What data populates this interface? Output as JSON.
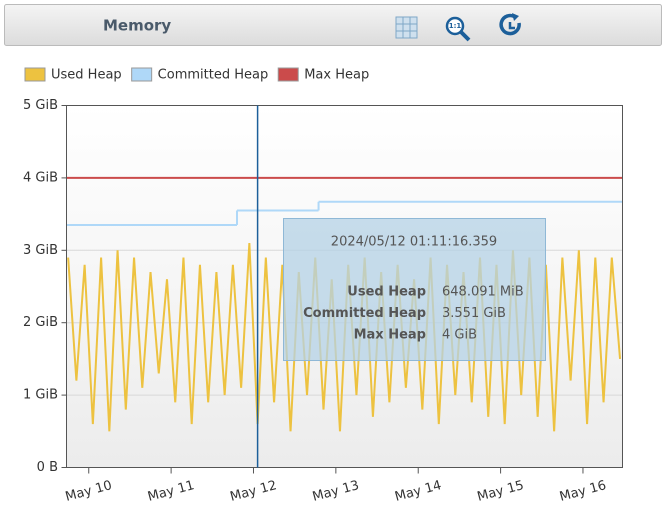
{
  "chart_data": {
    "type": "line",
    "title": "Memory",
    "xlim": [
      9.73,
      16.48
    ],
    "ylim": [
      0,
      5
    ],
    "yticks": [
      {
        "value": 0,
        "label": "0 B"
      },
      {
        "value": 1,
        "label": "1 GiB"
      },
      {
        "value": 2,
        "label": "2 GiB"
      },
      {
        "value": 3,
        "label": "3 GiB"
      },
      {
        "value": 4,
        "label": "4 GiB"
      },
      {
        "value": 5,
        "label": "5 GiB"
      }
    ],
    "xticks": [
      {
        "value": 10,
        "label": "May 10"
      },
      {
        "value": 11,
        "label": "May 11"
      },
      {
        "value": 12,
        "label": "May 12"
      },
      {
        "value": 13,
        "label": "May 13"
      },
      {
        "value": 14,
        "label": "May 14"
      },
      {
        "value": 15,
        "label": "May 15"
      },
      {
        "value": 16,
        "label": "May 16"
      }
    ],
    "grid": true,
    "legend": "top-left",
    "series": [
      {
        "name": "Used Heap",
        "color": "#edc240",
        "x": [
          9.75,
          9.85,
          9.95,
          10.05,
          10.15,
          10.25,
          10.35,
          10.45,
          10.55,
          10.65,
          10.75,
          10.85,
          10.95,
          11.05,
          11.15,
          11.25,
          11.35,
          11.45,
          11.55,
          11.65,
          11.75,
          11.85,
          11.95,
          12.05,
          12.15,
          12.25,
          12.35,
          12.45,
          12.55,
          12.65,
          12.75,
          12.85,
          12.95,
          13.05,
          13.15,
          13.25,
          13.35,
          13.45,
          13.55,
          13.65,
          13.75,
          13.85,
          13.95,
          14.05,
          14.15,
          14.25,
          14.35,
          14.45,
          14.55,
          14.65,
          14.75,
          14.85,
          14.95,
          15.05,
          15.15,
          15.25,
          15.35,
          15.45,
          15.55,
          15.65,
          15.75,
          15.85,
          15.95,
          16.05,
          16.15,
          16.25,
          16.35,
          16.45
        ],
        "values": [
          2.9,
          1.2,
          2.8,
          0.6,
          2.9,
          0.5,
          3.0,
          0.8,
          2.9,
          1.1,
          2.7,
          1.3,
          2.6,
          0.9,
          2.9,
          0.6,
          2.8,
          0.9,
          2.7,
          1.0,
          2.8,
          1.1,
          3.1,
          0.6,
          2.9,
          0.9,
          2.8,
          0.5,
          2.7,
          1.0,
          2.9,
          0.8,
          2.6,
          0.5,
          2.8,
          1.0,
          2.9,
          0.7,
          2.7,
          0.9,
          2.8,
          1.1,
          2.6,
          0.8,
          2.9,
          0.6,
          2.8,
          1.0,
          2.7,
          0.9,
          2.9,
          0.7,
          2.8,
          0.6,
          3.0,
          1.0,
          2.9,
          0.7,
          2.8,
          0.5,
          2.9,
          1.2,
          3.0,
          0.6,
          2.9,
          0.9,
          2.9,
          1.5
        ]
      },
      {
        "name": "Committed Heap",
        "color": "#afd8f8",
        "step": true,
        "x": [
          9.73,
          11.8,
          12.79
        ],
        "values": [
          3.35,
          3.55,
          3.67
        ]
      },
      {
        "name": "Max Heap",
        "color": "#cb4b4b",
        "x": [
          9.73,
          16.48
        ],
        "values": [
          4,
          4
        ]
      }
    ],
    "tooltip": {
      "x": 12.05,
      "title": "2024/05/12 01:11:16.359",
      "rows": [
        {
          "label": "Used Heap",
          "value": "648.091 MiB"
        },
        {
          "label": "Committed Heap",
          "value": "3.551 GiB"
        },
        {
          "label": "Max Heap",
          "value": "4 GiB"
        }
      ]
    }
  }
}
